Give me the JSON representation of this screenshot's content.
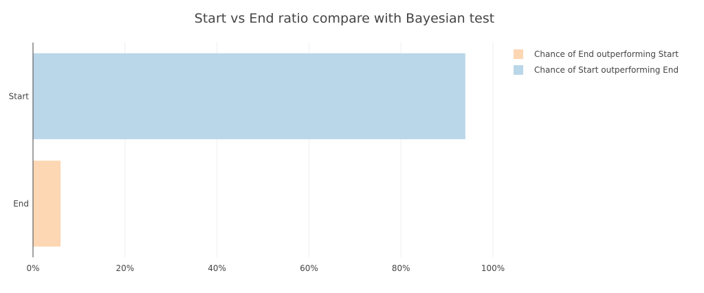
{
  "chart_data": {
    "type": "bar",
    "orientation": "horizontal",
    "title": "Start vs End ratio compare with Bayesian test",
    "categories": [
      "Start",
      "End"
    ],
    "series": [
      {
        "name": "Chance of End outperforming Start",
        "color": "#fdd6b3",
        "values": [
          0,
          0.06
        ]
      },
      {
        "name": "Chance of Start outperforming End",
        "color": "#bad6e9",
        "values": [
          0.94,
          0
        ]
      }
    ],
    "xlim": [
      0,
      1
    ],
    "xticks": [
      0,
      0.2,
      0.4,
      0.6,
      0.8,
      1.0
    ],
    "xtick_labels": [
      "0%",
      "20%",
      "40%",
      "60%",
      "80%",
      "100%"
    ],
    "grid": true,
    "legend_position": "top-right"
  }
}
